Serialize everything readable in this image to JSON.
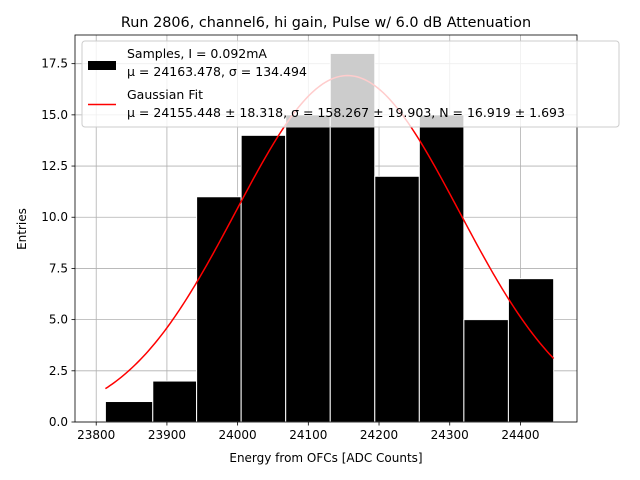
{
  "chart_data": {
    "type": "bar",
    "title": "Run 2806, channel6, hi gain, Pulse w/ 6.0 dB Attenuation",
    "xlabel": "Energy from OFCs [ADC Counts]",
    "ylabel": "Entries",
    "xlim": [
      23770,
      24480
    ],
    "ylim": [
      0,
      18.9
    ],
    "grid": true,
    "legend_position": "top-right",
    "xticks": [
      "23800",
      "23900",
      "24000",
      "24100",
      "24200",
      "24300",
      "24400"
    ],
    "yticks": [
      "0.0",
      "2.5",
      "5.0",
      "7.5",
      "10.0",
      "12.5",
      "15.0",
      "17.5"
    ],
    "bins": [
      {
        "x0": 23813,
        "x1": 23880,
        "value": 1
      },
      {
        "x0": 23880,
        "x1": 23942,
        "value": 2
      },
      {
        "x0": 23942,
        "x1": 24005,
        "value": 11
      },
      {
        "x0": 24005,
        "x1": 24068,
        "value": 14
      },
      {
        "x0": 24068,
        "x1": 24131,
        "value": 15
      },
      {
        "x0": 24131,
        "x1": 24194,
        "value": 18
      },
      {
        "x0": 24194,
        "x1": 24257,
        "value": 12
      },
      {
        "x0": 24257,
        "x1": 24320,
        "value": 15
      },
      {
        "x0": 24320,
        "x1": 24383,
        "value": 5
      },
      {
        "x0": 24383,
        "x1": 24447,
        "value": 7
      }
    ],
    "fit": {
      "mu": 24155.448,
      "sigma": 158.267,
      "N": 16.919,
      "x_start": 23813,
      "x_end": 24447
    },
    "bar_color": "#000000",
    "fit_color": "#ff0000",
    "legend": {
      "samples_line1": "Samples, I = 0.092mA",
      "samples_line2": "μ = 24163.478, σ = 134.494",
      "fit_line1": "Gaussian Fit",
      "fit_line2": "μ = 24155.448 ± 18.318, σ = 158.267 ± 19.903, N = 16.919 ± 1.693"
    }
  }
}
